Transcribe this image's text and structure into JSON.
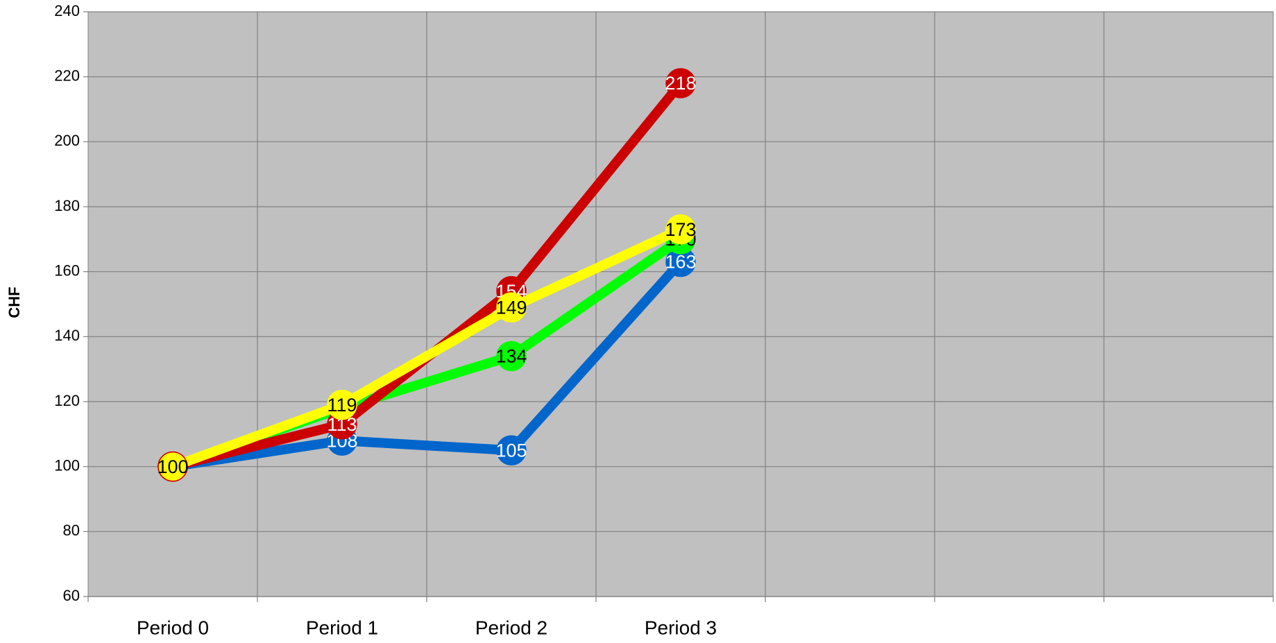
{
  "chart_data": {
    "type": "line",
    "y_label": "CHF",
    "categories": [
      "Period 0",
      "Period 1",
      "Period 2",
      "Period 3",
      null,
      null,
      null
    ],
    "series": [
      {
        "color": "#0066cc",
        "label_color": "#ffffff",
        "values": [
          100,
          108,
          105,
          163,
          null,
          null,
          null
        ]
      },
      {
        "color": "#00ff00",
        "label_color": "#000000",
        "values": [
          100,
          118,
          134,
          170,
          null,
          null,
          null
        ]
      },
      {
        "color": "#cc0000",
        "label_color": "#ffffff",
        "values": [
          100,
          113,
          154,
          218,
          null,
          null,
          null
        ]
      },
      {
        "color": "#ffff00",
        "label_color": "#000000",
        "values": [
          100,
          119,
          149,
          173,
          null,
          null,
          null
        ]
      }
    ],
    "ylim": [
      60,
      240
    ],
    "yticks": [
      60,
      80,
      100,
      120,
      140,
      160,
      180,
      200,
      220,
      240
    ],
    "grid": true,
    "plot_background": "#c0c0c0"
  }
}
